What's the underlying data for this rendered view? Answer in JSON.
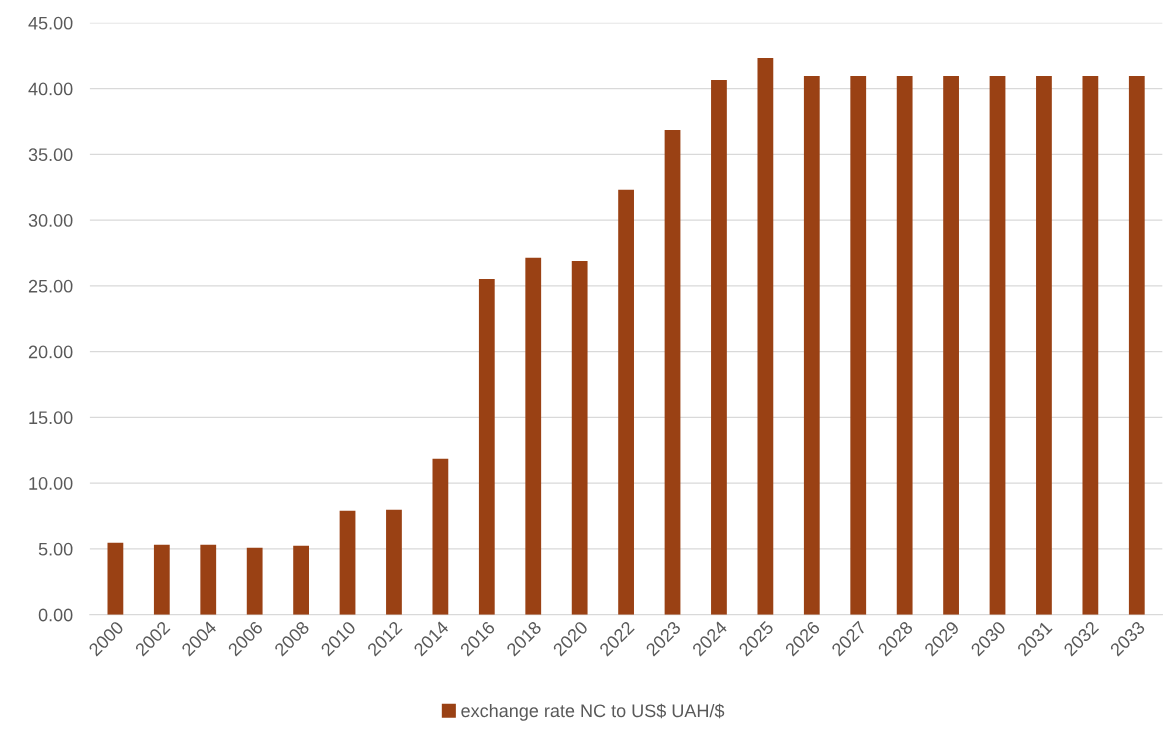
{
  "chart_data": {
    "type": "bar",
    "categories": [
      "2000",
      "2002",
      "2004",
      "2006",
      "2008",
      "2010",
      "2012",
      "2014",
      "2016",
      "2018",
      "2020",
      "2022",
      "2023",
      "2024",
      "2025",
      "2026",
      "2027",
      "2028",
      "2029",
      "2030",
      "2031",
      "2032",
      "2033"
    ],
    "series": [
      {
        "name": "exchange rate NC to US$ UAH/$",
        "color": "#9a4114",
        "values": [
          5.47,
          5.32,
          5.32,
          5.09,
          5.24,
          7.9,
          7.98,
          11.85,
          25.53,
          27.13,
          26.9,
          32.3,
          36.85,
          40.65,
          42.33,
          40.96,
          40.96,
          40.96,
          40.96,
          40.96,
          40.96,
          40.96,
          40.96
        ]
      }
    ],
    "ylim": [
      0,
      45
    ],
    "yticks": [
      {
        "value": 0,
        "label": "0.00"
      },
      {
        "value": 5,
        "label": "5.00"
      },
      {
        "value": 10,
        "label": "10.00"
      },
      {
        "value": 15,
        "label": "15.00"
      },
      {
        "value": 20,
        "label": "20.00"
      },
      {
        "value": 25,
        "label": "25.00"
      },
      {
        "value": 30,
        "label": "30.00"
      },
      {
        "value": 35,
        "label": "35.00"
      },
      {
        "value": 40,
        "label": "40.00"
      },
      {
        "value": 45,
        "label": "45.00"
      }
    ],
    "grid": "y",
    "legend": "bottom"
  }
}
